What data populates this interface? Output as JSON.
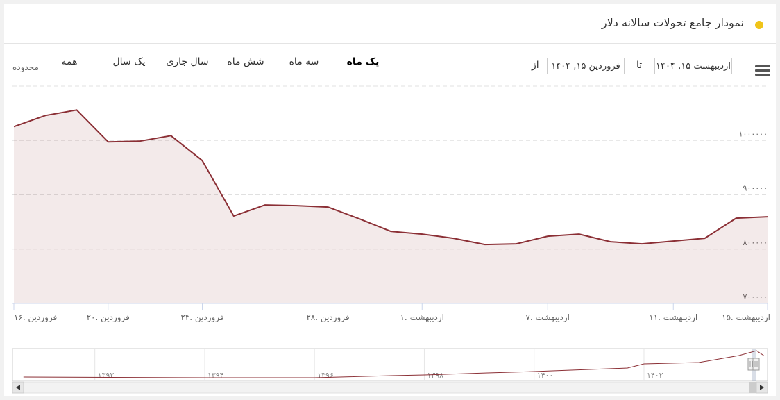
{
  "header": {
    "title": "نمودار جامع تحولات سالانه دلار"
  },
  "range_selector": {
    "label": "محدوده",
    "buttons": [
      "همه",
      "یک سال",
      "سال جاری",
      "شش ماه",
      "سه ماه",
      "یک ماه"
    ],
    "selected": 5
  },
  "date_range": {
    "from_label": "از",
    "from": "فروردین ۱۵, ۱۴۰۴",
    "to_label": "تا",
    "to": "اردیبهشت ۱۵, ۱۴۰۴"
  },
  "chart_data": {
    "type": "area",
    "categories": [
      "۱۶. فروردین",
      null,
      null,
      "۲۰. فروردین",
      null,
      null,
      "۲۴. فروردین",
      null,
      null,
      null,
      "۲۸. فروردین",
      null,
      null,
      "۱. اردیبهشت",
      null,
      null,
      null,
      "۷. اردیبهشت",
      null,
      null,
      null,
      "۱۱. اردیبهشت",
      null,
      null,
      "۱۵. اردیبهشت"
    ],
    "values": [
      1025500,
      1046000,
      1056200,
      997500,
      998700,
      1008900,
      963000,
      860900,
      881300,
      880000,
      877500,
      855800,
      832800,
      827700,
      820000,
      808500,
      809800,
      823800,
      827700,
      813600,
      809800,
      814900,
      820000,
      857000,
      859600
    ],
    "color": "#8b2f35",
    "ylim": [
      700000,
      1100000
    ],
    "yticks": [
      {
        "value": 700000,
        "label": "۷۰۰۰۰۰"
      },
      {
        "value": 800000,
        "label": "۸۰۰۰۰۰"
      },
      {
        "value": 900000,
        "label": "۹۰۰۰۰۰"
      },
      {
        "value": 1000000,
        "label": "۱۰۰۰۰۰۰"
      }
    ],
    "grid": true,
    "navigator": {
      "x": [
        1390.7,
        1394.06,
        1396.0,
        1397.4,
        1398.0,
        1399.15,
        1400.0,
        1401.7,
        1402.0,
        1403.0,
        1403.73,
        1404.05,
        1404.18
      ],
      "values": [
        120000,
        96000,
        96000,
        167000,
        191000,
        263000,
        311000,
        430000,
        574000,
        622000,
        861000,
        1028000,
        861000
      ],
      "xlim": [
        1390.5,
        1404.25
      ],
      "ylim": [
        0,
        1100000
      ],
      "xticks": [
        {
          "value": 1392,
          "label": "۱۳۹۲"
        },
        {
          "value": 1394,
          "label": "۱۳۹۴"
        },
        {
          "value": 1396,
          "label": "۱۳۹۶"
        },
        {
          "value": 1398,
          "label": "۱۳۹۸"
        },
        {
          "value": 1400,
          "label": "۱۴۰۰"
        },
        {
          "value": 1402,
          "label": "۱۴۰۲"
        }
      ]
    }
  }
}
